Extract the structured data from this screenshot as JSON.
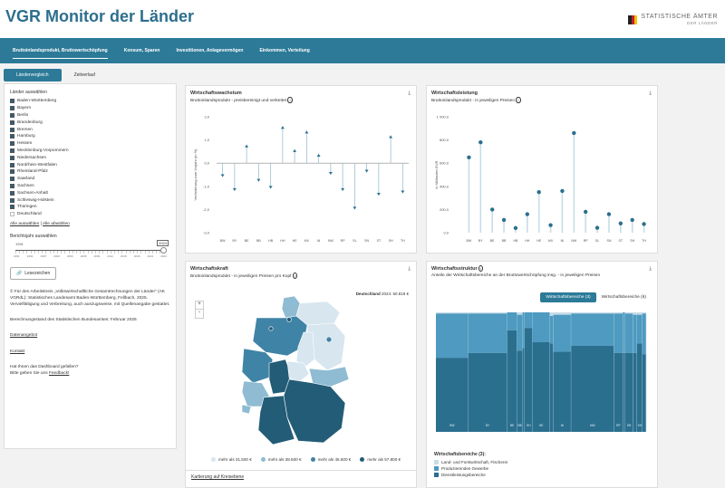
{
  "header": {
    "title": "VGR Monitor der Länder",
    "logo_main": "STATISTISCHE ÄMTER",
    "logo_sub": "DER LÄNDER"
  },
  "nav": [
    {
      "label": "Bruttoinlandsprodukt, Bruttowertschöpfung",
      "active": true
    },
    {
      "label": "Konsum, Sparen",
      "active": false
    },
    {
      "label": "Investitionen, Anlagevermögen",
      "active": false
    },
    {
      "label": "Einkommen, Verteilung",
      "active": false
    }
  ],
  "sidebar": {
    "tabs": [
      "Ländervergleich",
      "Zeitverlauf"
    ],
    "select_label": "Länder auswählen",
    "countries": [
      {
        "name": "Baden-Württemberg",
        "checked": true
      },
      {
        "name": "Bayern",
        "checked": true
      },
      {
        "name": "Berlin",
        "checked": true
      },
      {
        "name": "Brandenburg",
        "checked": true
      },
      {
        "name": "Bremen",
        "checked": true
      },
      {
        "name": "Hamburg",
        "checked": true
      },
      {
        "name": "Hessen",
        "checked": true
      },
      {
        "name": "Mecklenburg-Vorpommern",
        "checked": true
      },
      {
        "name": "Niedersachsen",
        "checked": true
      },
      {
        "name": "Nordrhein-Westfalen",
        "checked": true
      },
      {
        "name": "Rheinland-Pfalz",
        "checked": true
      },
      {
        "name": "Saarland",
        "checked": true
      },
      {
        "name": "Sachsen",
        "checked": true
      },
      {
        "name": "Sachsen-Anhalt",
        "checked": true
      },
      {
        "name": "Schleswig-Holstein",
        "checked": true
      },
      {
        "name": "Thüringen",
        "checked": true
      },
      {
        "name": "Deutschland",
        "checked": false
      }
    ],
    "select_all": "Alle auswählen",
    "separator": "|",
    "deselect_all": "Alle abwählen",
    "year_label": "Berichtsjahr auswählen",
    "year_min": "1991",
    "year_value": "2024",
    "year_ticks": [
      "1991",
      "1994",
      "1997",
      "2000",
      "2003",
      "2006",
      "2009",
      "2012",
      "2015",
      "2018",
      "2021",
      "2024"
    ],
    "read_button": "Lesezeichen",
    "copyright": "© Für den Arbeitskreis „Volkswirtschaftliche Gesamtrechnungen der Länder“ (AK VGRdL): Statistisches Landesamt Baden-Württemberg, Fellbach, 2025. Vervielfältigung und Verbreitung, auch auszugsweise, mit Quellenangabe gestattet.",
    "calc_status": "Berechnungsstand des Statistischen Bundesamtes: Februar 2025",
    "link_data": "Datenangebot",
    "link_contact": "Kontakt",
    "feedback_q": "Hat Ihnen das Dashboard gefallen?",
    "feedback_text": "Bitte geben Sie uns",
    "feedback_link": "Feedback!"
  },
  "growth": {
    "title": "Wirtschaftswachstum",
    "subtitle": "Bruttoinlandsprodukt - preisbereinigt und verkettet",
    "info": "i",
    "download": "⤓"
  },
  "perf": {
    "title": "Wirtschaftsleistung",
    "subtitle": "Bruttoinlandsprodukt - in jeweiligen Preisen",
    "info": "i",
    "download": "⤓"
  },
  "power": {
    "title": "Wirtschaftskraft",
    "subtitle": "Bruttoinlandsprodukt - in jeweiligen Preisen pro Kopf",
    "info": "i",
    "download": "⤓",
    "de_label": "Deutschland",
    "de_value": "2024: 50.819 €",
    "zoom_in": "+",
    "zoom_out": "-",
    "legend": [
      {
        "label": "mehr als 31.500 €",
        "color": "#d7e6ef"
      },
      {
        "label": "mehr als 38.500 €",
        "color": "#8fbcd3"
      },
      {
        "label": "mehr als 45.500 €",
        "color": "#3f84a6"
      },
      {
        "label": "mehr als 57.800 €",
        "color": "#235c77"
      }
    ],
    "link": "Kartierung auf Kreisebene"
  },
  "structure": {
    "title": "Wirtschaftsstruktur",
    "info": "i",
    "subtitle": "Anteile der Wirtschaftsbereiche an der Bruttowertschöpfung insg. - in jeweiligen Preisen",
    "download": "⤓",
    "tab_active": "Wirtschaftsbereiche (3)",
    "tab_inactive": "Wirtschaftsbereiche (6)",
    "legend_title": "Wirtschaftsbereiche (3):",
    "legend": [
      {
        "label": "Land- und Forstwirtschaft, Fischerei",
        "color": "#c8dce8"
      },
      {
        "label": "Produzierendes Gewerbe",
        "color": "#4e9ac0"
      },
      {
        "label": "Dienstleistungsbereiche",
        "color": "#2b6f8f"
      }
    ],
    "colors": {
      "top": "#4e9ac0",
      "bottom": "#2b6f8f",
      "line": "#cfe1eb"
    }
  },
  "chart_data": [
    {
      "type": "bar",
      "title": "Wirtschaftswachstum",
      "ylabel": "Veränderung zum Vorjahr (in %)",
      "categories": [
        "BW",
        "BY",
        "BE",
        "BB",
        "HB",
        "HH",
        "HE",
        "MV",
        "NI",
        "NW",
        "RP",
        "SL",
        "SN",
        "ST",
        "SH",
        "TH"
      ],
      "values": [
        -0.6,
        -1.2,
        0.8,
        -0.8,
        -1.1,
        1.6,
        0.6,
        1.4,
        0.4,
        -0.5,
        -1.2,
        -2.0,
        -0.4,
        -1.4,
        1.2,
        -1.3
      ],
      "ylim": [
        -3,
        2
      ],
      "yticks": [
        -3,
        -2,
        -1,
        0,
        1,
        2
      ],
      "ytick_labels": [
        "-3,0",
        "-2,0",
        "-1,0",
        "0,0",
        "1,0",
        "2,0"
      ],
      "chart_style": "arrow-lollipop"
    },
    {
      "type": "bar",
      "title": "Wirtschaftsleistung",
      "ylabel": "in Milliarden EUR",
      "categories": [
        "BW",
        "BY",
        "BE",
        "BB",
        "HB",
        "HH",
        "HE",
        "MV",
        "NI",
        "NW",
        "RP",
        "SL",
        "SN",
        "ST",
        "SH",
        "TH"
      ],
      "values": [
        650,
        780,
        200,
        110,
        40,
        160,
        350,
        65,
        360,
        860,
        180,
        42,
        160,
        80,
        110,
        75
      ],
      "ylim": [
        0,
        1000
      ],
      "yticks": [
        0,
        200,
        400,
        600,
        800,
        1000
      ],
      "ytick_labels": [
        "0,0",
        "200,0",
        "400,0",
        "600,0",
        "800,0",
        "1 000,0"
      ],
      "chart_style": "lollipop"
    },
    {
      "type": "bar",
      "title": "Wirtschaftsstruktur",
      "stacked": true,
      "categories": [
        "BW",
        "BY",
        "BE",
        "BB",
        "HB",
        "HH",
        "HE",
        "MV",
        "NI",
        "NW",
        "RP",
        "SL",
        "SN",
        "ST",
        "SH",
        "TH"
      ],
      "weights": [
        650,
        780,
        200,
        110,
        40,
        160,
        350,
        65,
        360,
        860,
        180,
        42,
        160,
        80,
        110,
        75
      ],
      "series": [
        {
          "name": "Dienstleistungsbereiche",
          "values": [
            0.62,
            0.66,
            0.85,
            0.68,
            0.7,
            0.87,
            0.75,
            0.74,
            0.67,
            0.72,
            0.66,
            0.66,
            0.66,
            0.66,
            0.74,
            0.65
          ]
        },
        {
          "name": "Produzierendes Gewerbe",
          "values": [
            0.37,
            0.33,
            0.15,
            0.3,
            0.3,
            0.13,
            0.25,
            0.23,
            0.31,
            0.27,
            0.33,
            0.34,
            0.33,
            0.32,
            0.24,
            0.34
          ]
        },
        {
          "name": "Land- und Forstwirtschaft, Fischerei",
          "values": [
            0.01,
            0.01,
            0.0,
            0.02,
            0.0,
            0.0,
            0.0,
            0.03,
            0.02,
            0.01,
            0.01,
            0.0,
            0.01,
            0.02,
            0.02,
            0.01
          ]
        }
      ]
    }
  ]
}
